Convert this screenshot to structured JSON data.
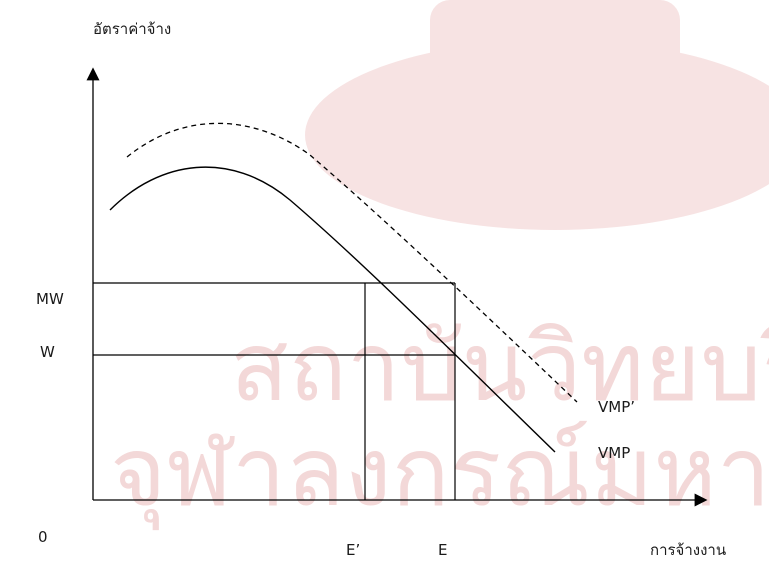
{
  "labels": {
    "y_axis_title": "อัตราค่าจ้าง",
    "x_axis_title": "การจ้างงาน",
    "origin": "0",
    "mw": "MW",
    "w": "W",
    "e_prime": "E’",
    "e": "E",
    "vmp_prime": "VMP’",
    "vmp": "VMP"
  },
  "watermark": {
    "text_line_1": "สถาบันวิทยบริการ",
    "text_line_2": "จุฬาลงกรณ์มหาวิทยาลัย",
    "color": "#f3d8d8"
  },
  "colors": {
    "ink": "#000000",
    "watermark_emblem": "#f6dede"
  }
}
